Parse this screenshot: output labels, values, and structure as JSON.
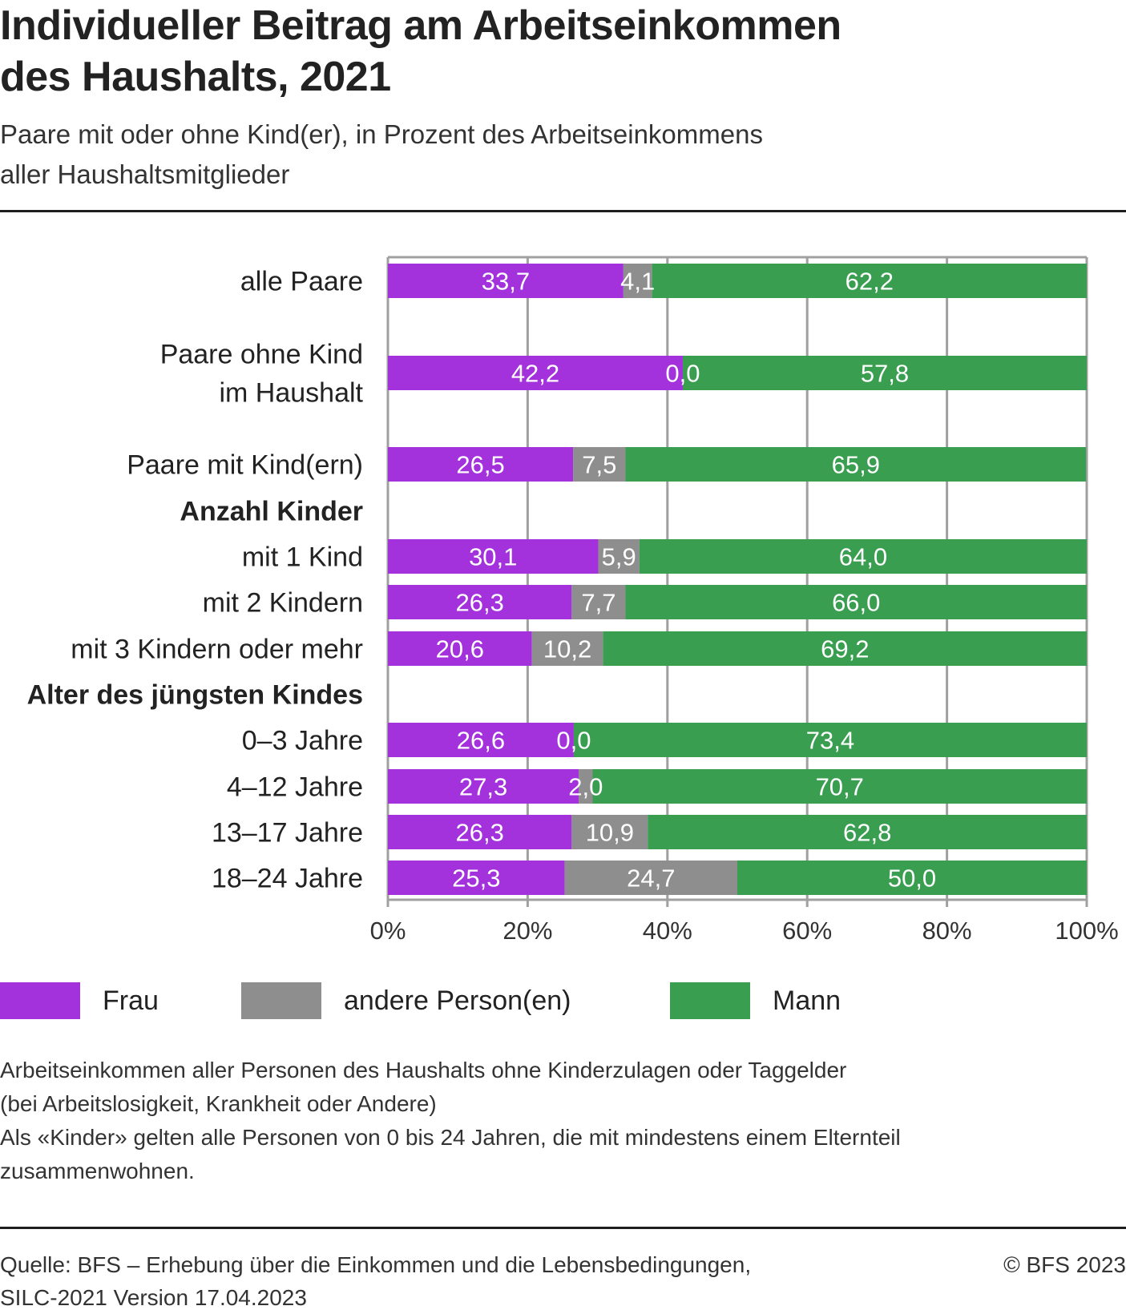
{
  "header": {
    "title_line1": "Individueller Beitrag am Arbeitseinkommen",
    "title_line2": "des Haushalts, 2021",
    "subtitle_line1": "Paare mit oder ohne Kind(er), in Prozent des Arbeitseinkommens",
    "subtitle_line2": "aller Haushaltsmitglieder"
  },
  "colors": {
    "frau": "#a332dd",
    "andere": "#8e8e8e",
    "mann": "#3a9e51",
    "grid": "#a0a0a0"
  },
  "chart_data": {
    "type": "bar",
    "orientation": "horizontal",
    "stacked": true,
    "title": "Individueller Beitrag am Arbeitseinkommen des Haushalts, 2021",
    "subtitle": "Paare mit oder ohne Kind(er), in Prozent des Arbeitseinkommens aller Haushaltsmitglieder",
    "xlabel": "",
    "ylabel": "",
    "xlim": [
      0,
      100
    ],
    "x_ticks": [
      "0%",
      "20%",
      "40%",
      "60%",
      "80%",
      "100%"
    ],
    "x_tick_values": [
      0,
      20,
      40,
      60,
      80,
      100
    ],
    "grid": true,
    "legend_position": "bottom",
    "rows": [
      {
        "kind": "bar",
        "label_lines": [
          "alle Paare"
        ],
        "values": [
          33.7,
          4.1,
          62.2
        ],
        "labels": [
          "33,7",
          "4,1",
          "62,2"
        ]
      },
      {
        "kind": "bar",
        "label_lines": [
          "Paare ohne Kind",
          "im Haushalt"
        ],
        "values": [
          42.2,
          0.0,
          57.8
        ],
        "labels": [
          "42,2",
          "0,0",
          "57,8"
        ]
      },
      {
        "kind": "bar",
        "label_lines": [
          "Paare mit Kind(ern)"
        ],
        "values": [
          26.5,
          7.5,
          65.9
        ],
        "labels": [
          "26,5",
          "7,5",
          "65,9"
        ]
      },
      {
        "kind": "group",
        "label_lines": [
          "Anzahl Kinder"
        ]
      },
      {
        "kind": "bar",
        "label_lines": [
          "mit 1 Kind"
        ],
        "values": [
          30.1,
          5.9,
          64.0
        ],
        "labels": [
          "30,1",
          "5,9",
          "64,0"
        ]
      },
      {
        "kind": "bar",
        "label_lines": [
          "mit 2 Kindern"
        ],
        "values": [
          26.3,
          7.7,
          66.0
        ],
        "labels": [
          "26,3",
          "7,7",
          "66,0"
        ]
      },
      {
        "kind": "bar",
        "label_lines": [
          "mit 3 Kindern oder mehr"
        ],
        "values": [
          20.6,
          10.2,
          69.2
        ],
        "labels": [
          "20,6",
          "10,2",
          "69,2"
        ]
      },
      {
        "kind": "group",
        "label_lines": [
          "Alter des jüngsten Kindes"
        ]
      },
      {
        "kind": "bar",
        "label_lines": [
          "0–3 Jahre"
        ],
        "values": [
          26.6,
          0.0,
          73.4
        ],
        "labels": [
          "26,6",
          "0,0",
          "73,4"
        ]
      },
      {
        "kind": "bar",
        "label_lines": [
          "4–12 Jahre"
        ],
        "values": [
          27.3,
          2.0,
          70.7
        ],
        "labels": [
          "27,3",
          "2,0",
          "70,7"
        ]
      },
      {
        "kind": "bar",
        "label_lines": [
          "13–17 Jahre"
        ],
        "values": [
          26.3,
          10.9,
          62.8
        ],
        "labels": [
          "26,3",
          "10,9",
          "62,8"
        ]
      },
      {
        "kind": "bar",
        "label_lines": [
          "18–24 Jahre"
        ],
        "values": [
          25.3,
          24.7,
          50.0
        ],
        "labels": [
          "25,3",
          "24,7",
          "50,0"
        ]
      }
    ],
    "series": [
      {
        "name": "Frau",
        "color": "#a332dd"
      },
      {
        "name": "andere Person(en)",
        "color": "#8e8e8e"
      },
      {
        "name": "Mann",
        "color": "#3a9e51"
      }
    ]
  },
  "legend": {
    "items": [
      {
        "label": "Frau",
        "color": "#a332dd"
      },
      {
        "label": "andere Person(en)",
        "color": "#8e8e8e"
      },
      {
        "label": "Mann",
        "color": "#3a9e51"
      }
    ]
  },
  "notes": {
    "line1": "Arbeitseinkommen aller Personen des Haushalts ohne Kinderzulagen oder Taggelder",
    "line2": "(bei Arbeitslosigkeit, Krankheit oder Andere)",
    "line3": "Als «Kinder» gelten alle Personen von 0 bis 24 Jahren, die mit mindestens einem Elternteil",
    "line4": "zusammenwohnen."
  },
  "footer": {
    "source_line1": "Quelle: BFS – Erhebung über die Einkommen und die Lebensbedingungen,",
    "source_line2": "SILC-2021 Version 17.04.2023",
    "copyright": "© BFS 2023"
  }
}
